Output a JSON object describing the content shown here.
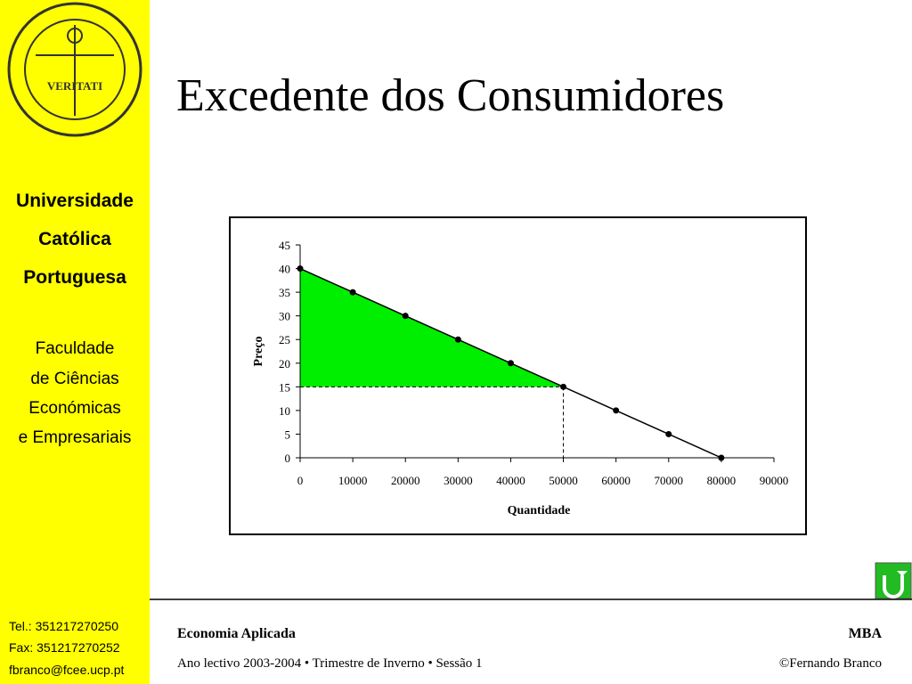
{
  "sidebar": {
    "logo_motto": "VERITATI",
    "university": [
      "Universidade",
      "Católica",
      "Portuguesa"
    ],
    "faculty": [
      "Faculdade",
      "de Ciências",
      "Económicas",
      "e Empresariais"
    ],
    "contacts": [
      "Tel.: 351217270250",
      "Fax: 351217270252",
      "fbranco@fcee.ucp.pt"
    ]
  },
  "header": {
    "title": "Excedente dos Consumidores"
  },
  "footer": {
    "course": "Economia Aplicada",
    "program": "MBA",
    "session": "Ano lectivo 2003-2004 • Trimestre de Inverno • Sessão 1",
    "author": "©Fernando Branco"
  },
  "chart_data": {
    "type": "line",
    "x_label": "Quantidade",
    "y_label": "Preço",
    "x": [
      0,
      10000,
      20000,
      30000,
      40000,
      50000,
      60000,
      70000,
      80000
    ],
    "values": [
      40,
      35,
      30,
      25,
      20,
      15,
      10,
      5,
      0
    ],
    "color": "#000000",
    "equilibrium": {
      "x": 50000,
      "y": 15
    },
    "area_color": "#00ee00",
    "xlim": [
      0,
      90000
    ],
    "xticks": [
      0,
      10000,
      20000,
      30000,
      40000,
      50000,
      60000,
      70000,
      80000,
      90000
    ],
    "ylim": [
      0,
      45
    ],
    "yticks": [
      0,
      5,
      10,
      15,
      20,
      25,
      30,
      35,
      40,
      45
    ]
  }
}
